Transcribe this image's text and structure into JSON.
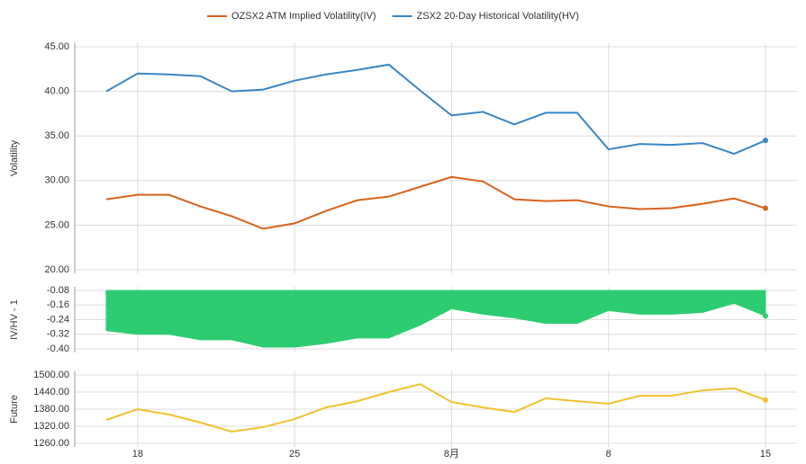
{
  "chart_data": [
    {
      "type": "line",
      "y_label": "Volatility",
      "ylim": [
        20,
        45
      ],
      "yticks": [
        {
          "value": 20,
          "label": "20.00"
        },
        {
          "value": 25,
          "label": "25.00"
        },
        {
          "value": 30,
          "label": "30.00"
        },
        {
          "value": 35,
          "label": "35.00"
        },
        {
          "value": 40,
          "label": "40.00"
        },
        {
          "value": 45,
          "label": "45.00"
        }
      ],
      "grid": true,
      "series": [
        {
          "name": "OZSX2 ATM Implied Volatility(IV)",
          "color": "#d9621c",
          "values": [
            27.9,
            28.4,
            28.4,
            27.1,
            26.0,
            24.6,
            25.2,
            26.6,
            27.8,
            28.2,
            29.3,
            30.4,
            29.9,
            27.9,
            27.7,
            27.8,
            27.1,
            26.8,
            26.9,
            27.4,
            28.0,
            26.9
          ]
        },
        {
          "name": "ZSX2 20-Day Historical Volatility(HV)",
          "color": "#3a86c6",
          "values": [
            40.0,
            42.0,
            41.9,
            41.7,
            40.0,
            40.2,
            41.2,
            41.9,
            42.4,
            43.0,
            40.1,
            37.3,
            37.7,
            36.3,
            37.6,
            37.6,
            33.5,
            34.1,
            34.0,
            34.2,
            33.0,
            34.5
          ]
        }
      ]
    },
    {
      "type": "area",
      "y_label": "IV/HV - 1",
      "ylim": [
        -0.4,
        -0.08
      ],
      "yticks": [
        {
          "value": -0.4,
          "label": "-0.40"
        },
        -0.32,
        -0.24,
        -0.16,
        -0.08
      ],
      "grid": true,
      "color": "#2ecc71",
      "values": [
        -0.3,
        -0.32,
        -0.32,
        -0.35,
        -0.35,
        -0.39,
        -0.39,
        -0.37,
        -0.34,
        -0.34,
        -0.27,
        -0.18,
        -0.21,
        -0.23,
        -0.26,
        -0.26,
        -0.19,
        -0.21,
        -0.21,
        -0.2,
        -0.15,
        -0.22
      ]
    },
    {
      "type": "line",
      "y_label": "Future",
      "ylim": [
        1260,
        1500
      ],
      "yticks": [
        {
          "value": 1260,
          "label": "1260.00"
        },
        {
          "value": 1320,
          "label": "1320.00"
        },
        {
          "value": 1380,
          "label": "1380.00"
        },
        {
          "value": 1440,
          "label": "1440.00"
        },
        {
          "value": 1500,
          "label": "1500.00"
        }
      ],
      "grid": true,
      "categories": [
        null,
        "18",
        null,
        null,
        null,
        null,
        "25",
        null,
        null,
        null,
        null,
        "8月",
        null,
        null,
        null,
        null,
        "8",
        null,
        null,
        null,
        null,
        "15"
      ],
      "series": [
        {
          "color": "#f0c22e",
          "values": [
            1342,
            1380,
            1361,
            1333,
            1301,
            1317,
            1345,
            1386,
            1408,
            1440,
            1468,
            1405,
            1386,
            1370,
            1418,
            1408,
            1399,
            1427,
            1427,
            1446,
            1453,
            1412
          ]
        }
      ]
    }
  ]
}
